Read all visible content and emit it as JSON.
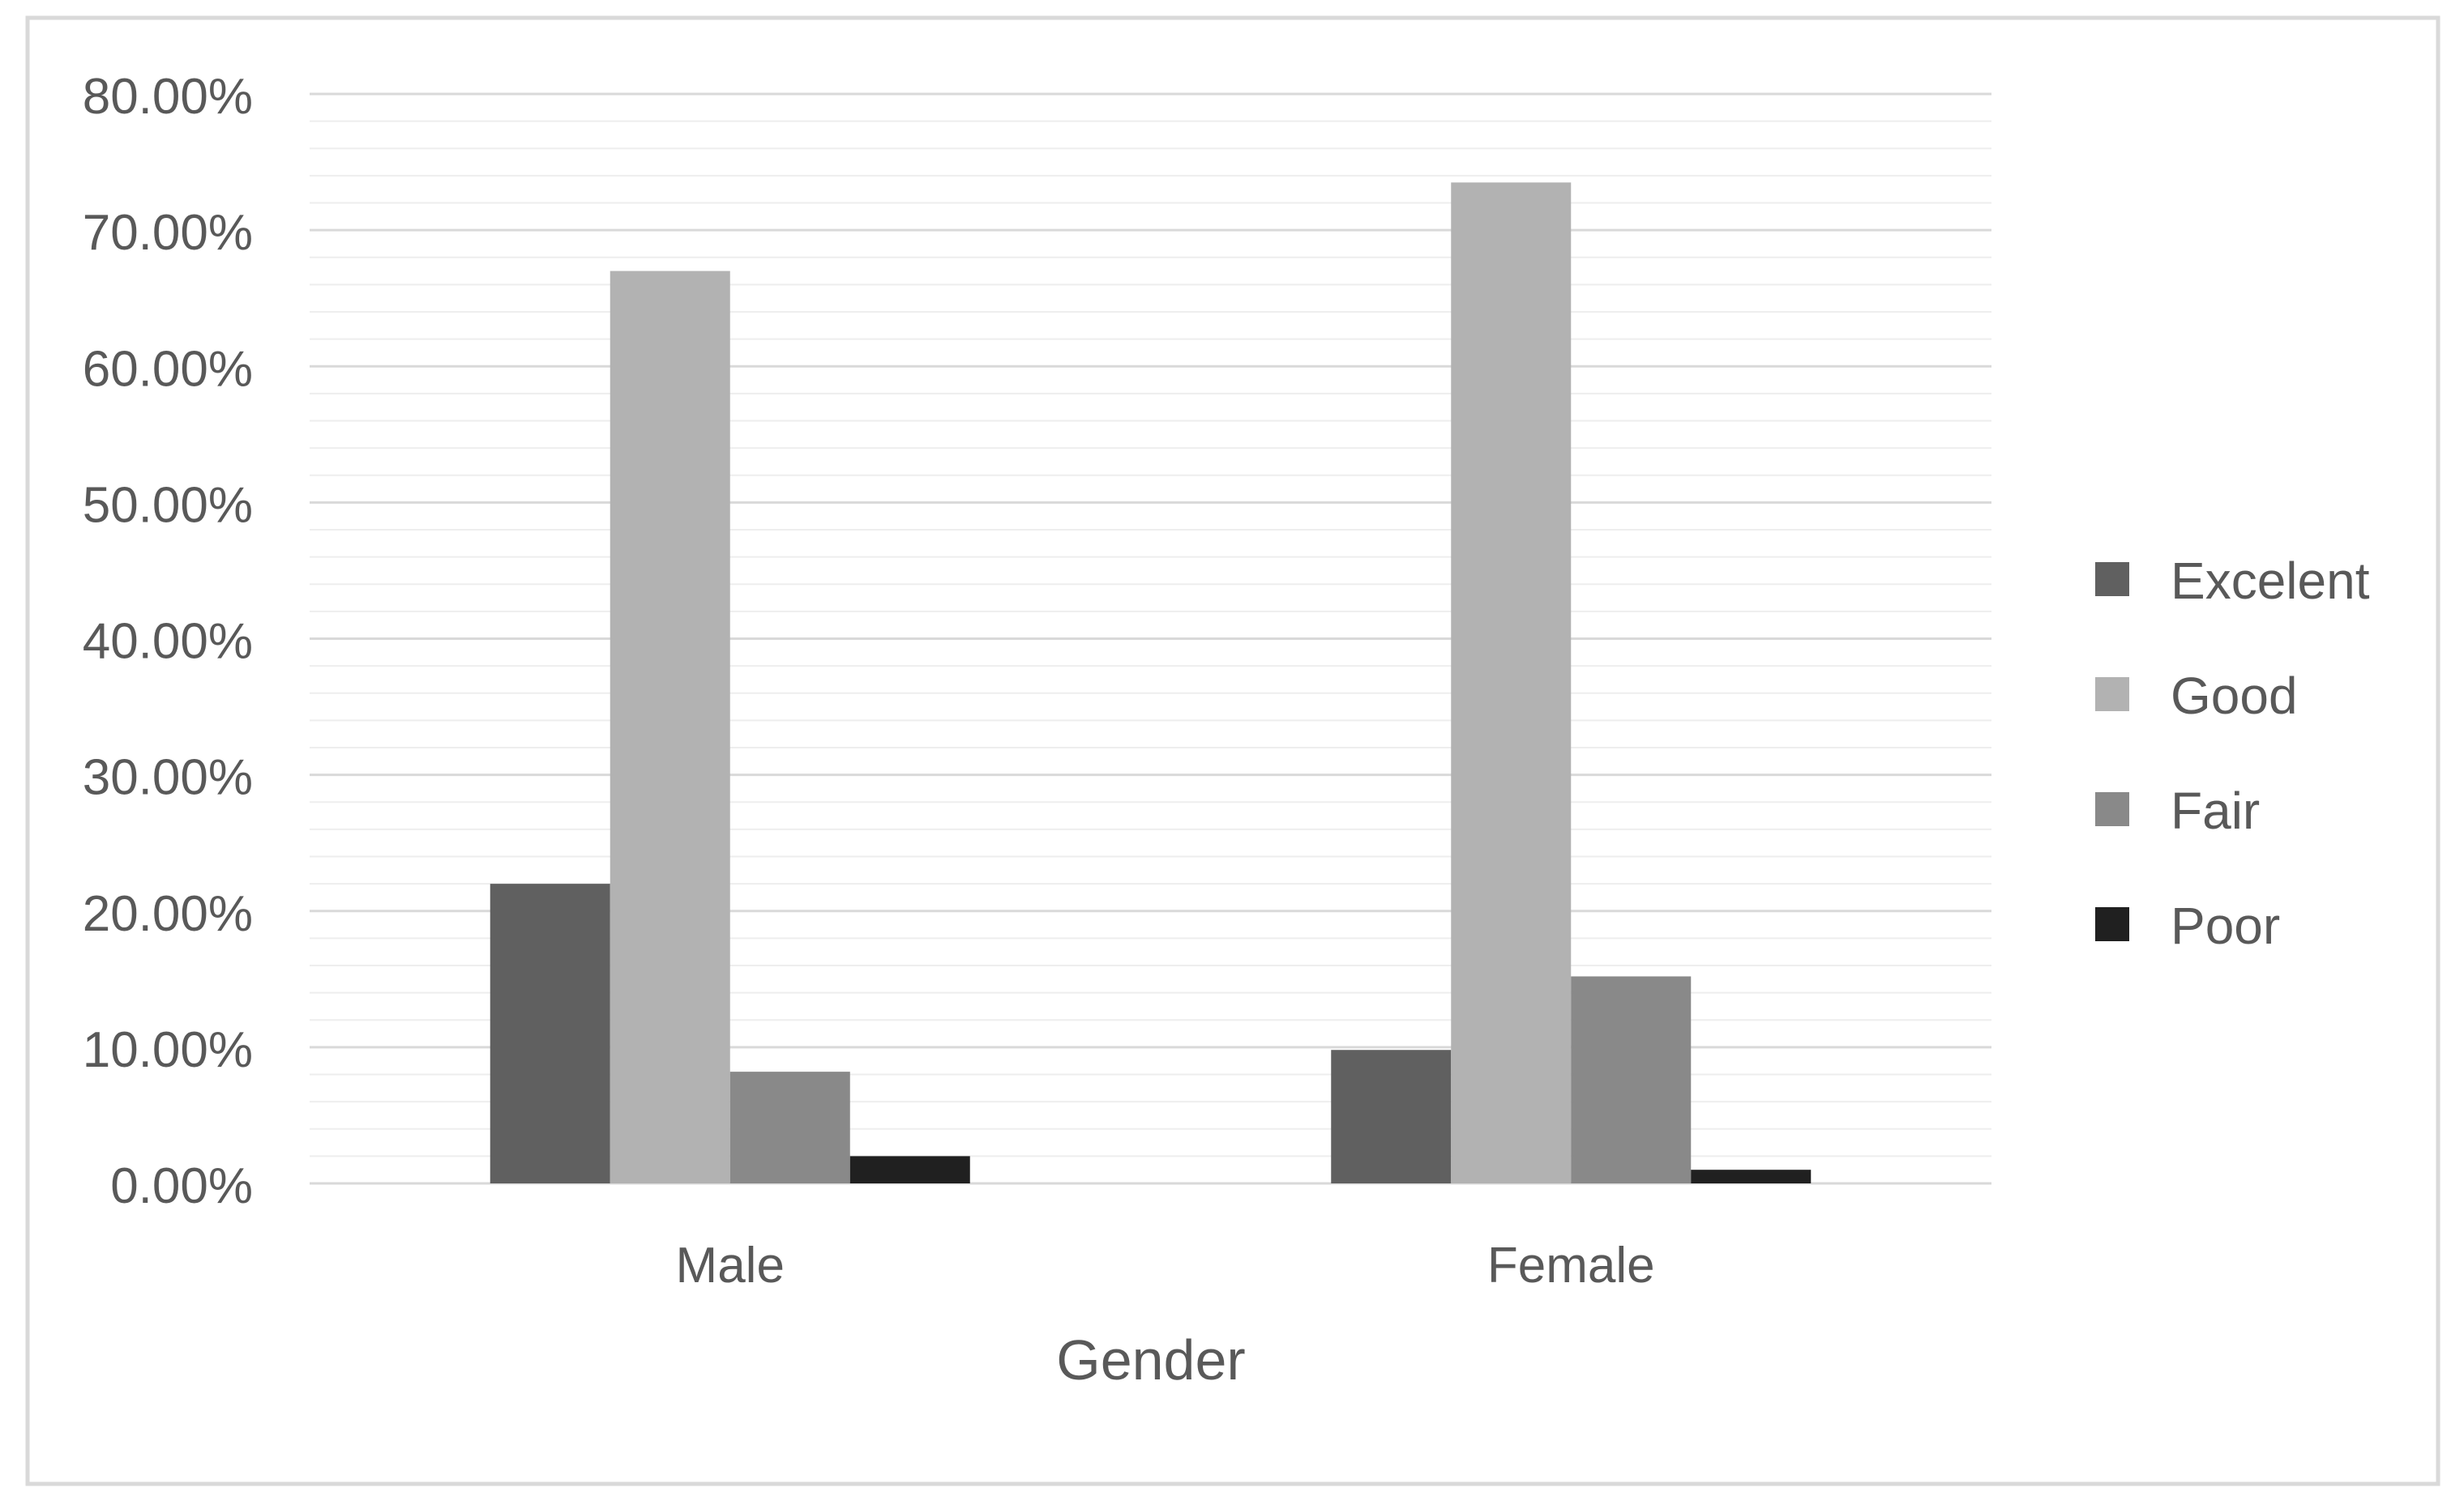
{
  "chart_data": {
    "type": "bar",
    "title": "",
    "xlabel": "Gender",
    "ylabel": "",
    "categories": [
      "Male",
      "Female"
    ],
    "series": [
      {
        "name": "Excelent",
        "values": [
          22.0,
          9.8
        ],
        "color": "#606060"
      },
      {
        "name": "Good",
        "values": [
          67.0,
          73.5
        ],
        "color": "#b2b2b2"
      },
      {
        "name": "Fair",
        "values": [
          8.2,
          15.2
        ],
        "color": "#898989"
      },
      {
        "name": "Poor",
        "values": [
          2.0,
          1.0
        ],
        "color": "#202020"
      }
    ],
    "ylim": [
      0,
      80
    ],
    "ytick_step": 10,
    "yticks": [
      "0.00%",
      "10.00%",
      "20.00%",
      "30.00%",
      "40.00%",
      "50.00%",
      "60.00%",
      "70.00%",
      "80.00%"
    ],
    "grid": true,
    "legend_position": "right"
  }
}
